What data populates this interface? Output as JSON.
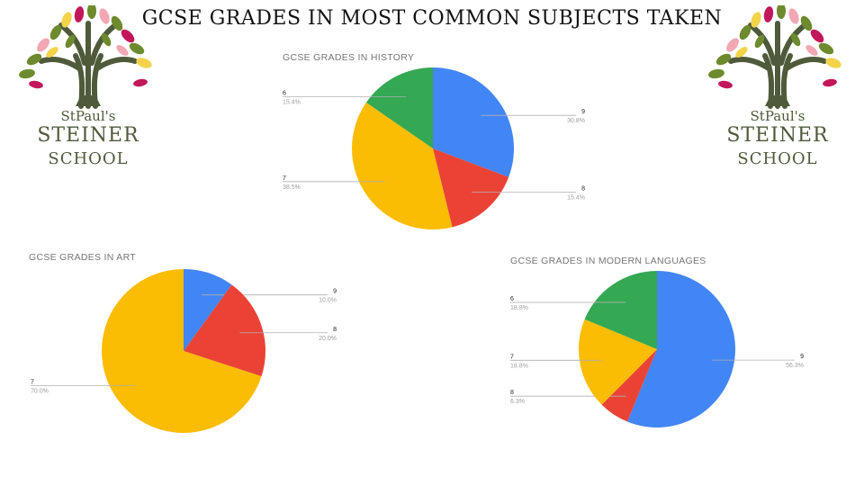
{
  "page": {
    "title": "GCSE GRADES IN MOST COMMON SUBJECTS TAKEN"
  },
  "logo": {
    "name": "StPaul's",
    "word1": "STEINER",
    "word2": "SCHOOL",
    "colors": {
      "trunk": "#4e5a3a",
      "leaf_green": "#6d8a2e",
      "leaf_pink": "#f2a7b5",
      "leaf_red": "#c2185b",
      "leaf_yellow": "#f2d34a"
    }
  },
  "chart_data": [
    {
      "type": "pie",
      "title": "GCSE GRADES IN HISTORY",
      "slices": [
        {
          "label": "9",
          "value": 30.8,
          "pct": "30.8%",
          "color": "#4285F4"
        },
        {
          "label": "8",
          "value": 15.4,
          "pct": "15.4%",
          "color": "#EA4335"
        },
        {
          "label": "7",
          "value": 38.5,
          "pct": "38.5%",
          "color": "#FBBC04"
        },
        {
          "label": "6",
          "value": 15.4,
          "pct": "15.4%",
          "color": "#34A853"
        }
      ]
    },
    {
      "type": "pie",
      "title": "GCSE GRADES IN ART",
      "slices": [
        {
          "label": "9",
          "value": 10.0,
          "pct": "10.0%",
          "color": "#4285F4"
        },
        {
          "label": "8",
          "value": 20.0,
          "pct": "20.0%",
          "color": "#EA4335"
        },
        {
          "label": "7",
          "value": 70.0,
          "pct": "70.0%",
          "color": "#FBBC04"
        }
      ]
    },
    {
      "type": "pie",
      "title": "GCSE GRADES IN MODERN LANGUAGES",
      "slices": [
        {
          "label": "9",
          "value": 56.3,
          "pct": "56.3%",
          "color": "#4285F4"
        },
        {
          "label": "8",
          "value": 6.3,
          "pct": "6.3%",
          "color": "#EA4335"
        },
        {
          "label": "7",
          "value": 18.8,
          "pct": "18.8%",
          "color": "#FBBC04"
        },
        {
          "label": "6",
          "value": 18.8,
          "pct": "18.8%",
          "color": "#34A853"
        }
      ]
    }
  ]
}
